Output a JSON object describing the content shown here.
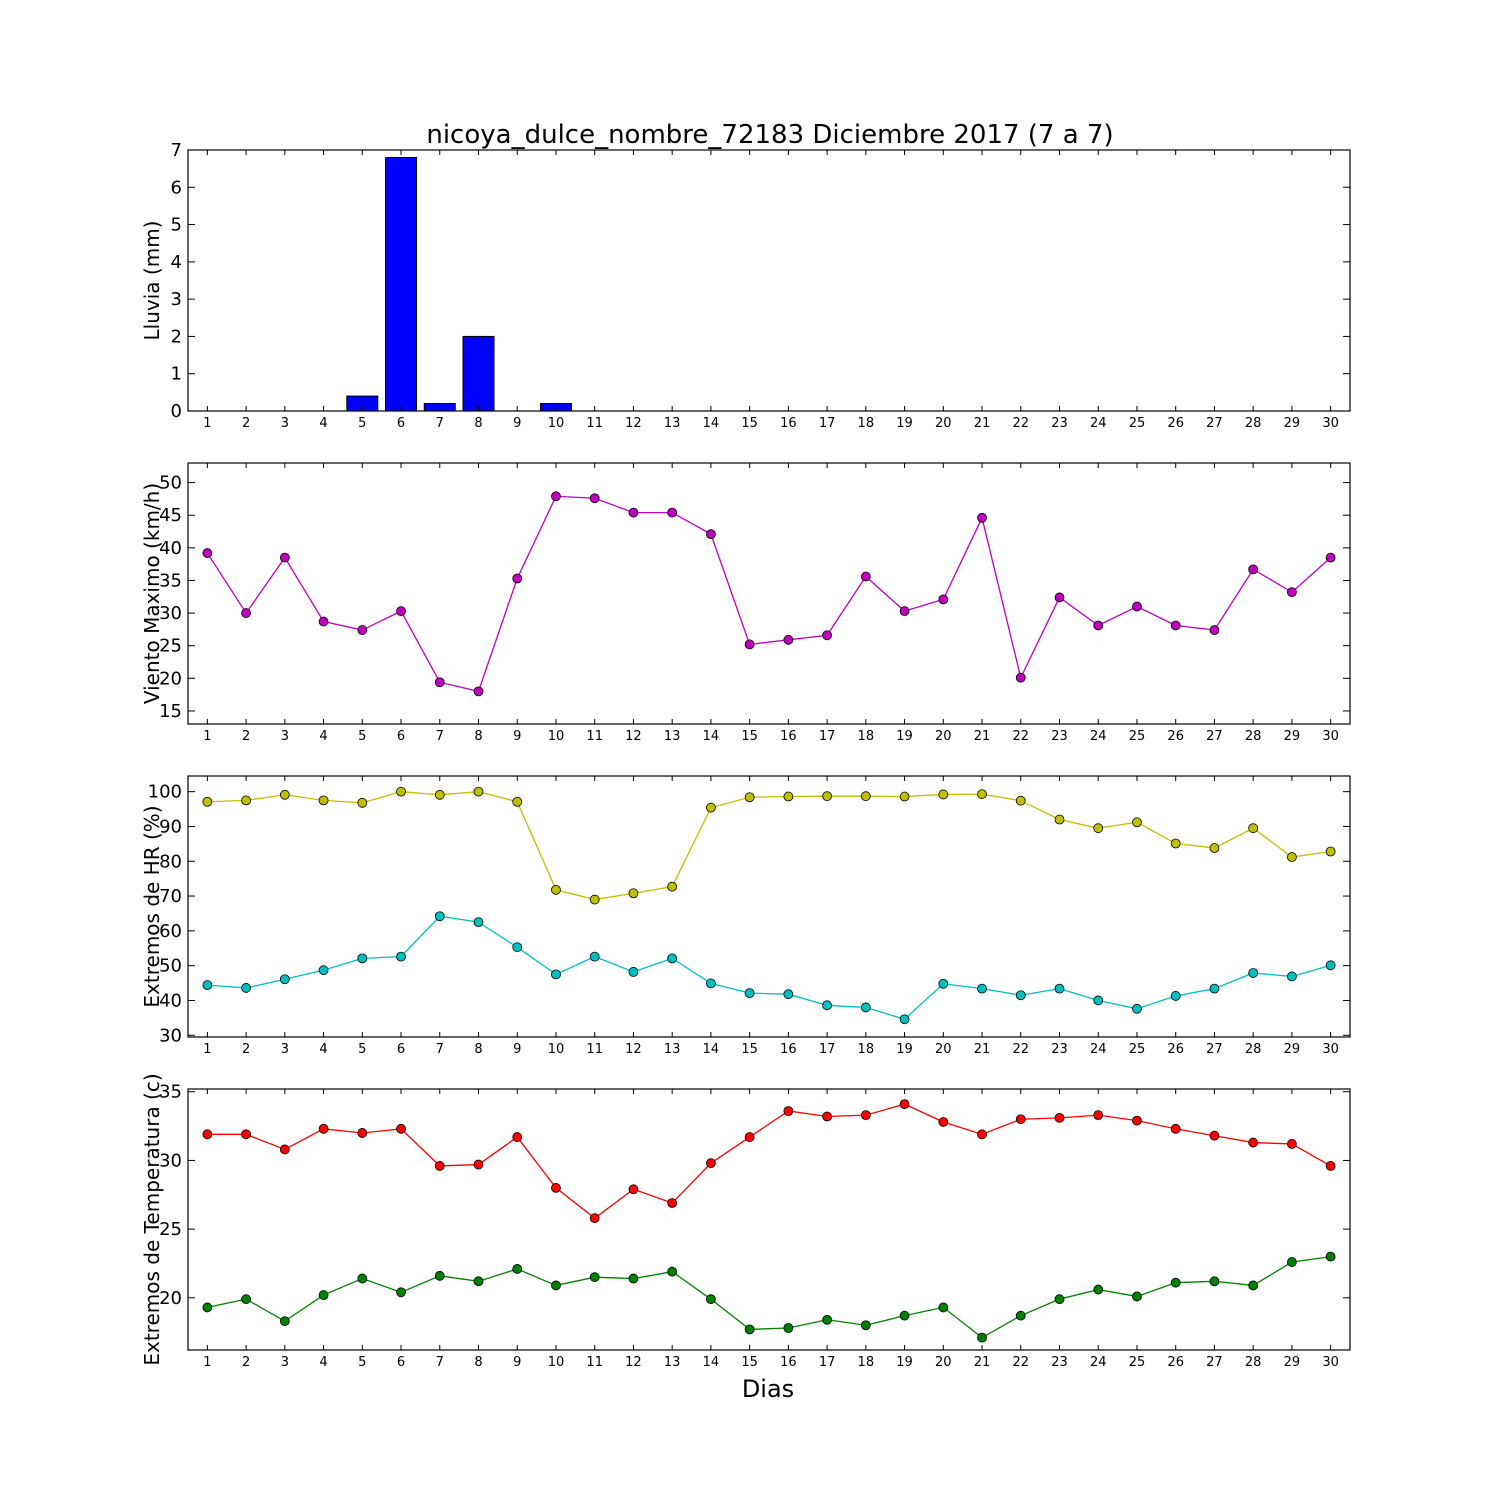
{
  "title": "nicoya_dulce_nombre_72183 Diciembre 2017  (7 a 7)",
  "xlabel": "Dias",
  "chart_data": [
    {
      "type": "bar",
      "ylabel": "Lluvia (mm)",
      "ylim": [
        0,
        7
      ],
      "yticks": [
        0,
        1,
        2,
        3,
        4,
        5,
        6,
        7
      ],
      "xlim": [
        0.5,
        30.5
      ],
      "categories": [
        1,
        2,
        3,
        4,
        5,
        6,
        7,
        8,
        9,
        10,
        11,
        12,
        13,
        14,
        15,
        16,
        17,
        18,
        19,
        20,
        21,
        22,
        23,
        24,
        25,
        26,
        27,
        28,
        29,
        30
      ],
      "series": [
        {
          "color": "#0000ff",
          "values": [
            0,
            0,
            0,
            0,
            0.4,
            6.8,
            0.2,
            2.0,
            0,
            0.2,
            0,
            0,
            0,
            0,
            0,
            0,
            0,
            0,
            0,
            0,
            0,
            0,
            0,
            0,
            0,
            0,
            0,
            0,
            0,
            0
          ]
        }
      ]
    },
    {
      "type": "line",
      "ylabel": "Viento Maximo (km/h)",
      "ylim": [
        13,
        53
      ],
      "yticks": [
        15,
        20,
        25,
        30,
        35,
        40,
        45,
        50
      ],
      "xlim": [
        0.5,
        30.5
      ],
      "x": [
        1,
        2,
        3,
        4,
        5,
        6,
        7,
        8,
        9,
        10,
        11,
        12,
        13,
        14,
        15,
        16,
        17,
        18,
        19,
        20,
        21,
        22,
        23,
        24,
        25,
        26,
        27,
        28,
        29,
        30
      ],
      "series": [
        {
          "color": "#bf00bf",
          "values": [
            39.2,
            30.0,
            38.5,
            28.7,
            27.4,
            30.3,
            19.4,
            18.0,
            35.3,
            47.9,
            47.6,
            45.4,
            45.4,
            42.1,
            25.2,
            25.9,
            26.6,
            35.6,
            30.3,
            32.1,
            44.6,
            20.1,
            32.4,
            28.1,
            31.0,
            28.1,
            27.4,
            36.7,
            33.2,
            38.5
          ]
        }
      ]
    },
    {
      "type": "line",
      "ylabel": "Extremos de HR (%)",
      "ylim": [
        29.5,
        104.5
      ],
      "yticks": [
        30,
        40,
        50,
        60,
        70,
        80,
        90,
        100
      ],
      "xlim": [
        0.5,
        30.5
      ],
      "x": [
        1,
        2,
        3,
        4,
        5,
        6,
        7,
        8,
        9,
        10,
        11,
        12,
        13,
        14,
        15,
        16,
        17,
        18,
        19,
        20,
        21,
        22,
        23,
        24,
        25,
        26,
        27,
        28,
        29,
        30
      ],
      "series": [
        {
          "color": "#bfbf00",
          "values": [
            97.1,
            97.5,
            99.1,
            97.5,
            96.8,
            100.0,
            99.1,
            100.0,
            97.1,
            71.8,
            69.0,
            70.8,
            72.7,
            95.4,
            98.4,
            98.6,
            98.7,
            98.7,
            98.6,
            99.2,
            99.3,
            97.4,
            92.0,
            89.5,
            91.2,
            85.1,
            83.8,
            89.5,
            81.2,
            82.8
          ]
        },
        {
          "color": "#00bfbf",
          "values": [
            44.4,
            43.6,
            46.1,
            48.7,
            52.1,
            52.6,
            64.2,
            62.5,
            55.3,
            47.5,
            52.6,
            48.2,
            52.1,
            44.9,
            42.1,
            41.8,
            38.6,
            38.0,
            34.6,
            44.8,
            43.4,
            41.5,
            43.4,
            40.0,
            37.6,
            41.3,
            43.4,
            47.9,
            46.9,
            50.1
          ]
        }
      ]
    },
    {
      "type": "line",
      "ylabel": "Extremos de Temperatura (c)",
      "ylim": [
        16.2,
        35.2
      ],
      "yticks": [
        20,
        25,
        30,
        35
      ],
      "xlim": [
        0.5,
        30.5
      ],
      "x": [
        1,
        2,
        3,
        4,
        5,
        6,
        7,
        8,
        9,
        10,
        11,
        12,
        13,
        14,
        15,
        16,
        17,
        18,
        19,
        20,
        21,
        22,
        23,
        24,
        25,
        26,
        27,
        28,
        29,
        30
      ],
      "series": [
        {
          "color": "#ff0000",
          "values": [
            31.9,
            31.9,
            30.8,
            32.3,
            32.0,
            32.3,
            29.6,
            29.7,
            31.7,
            28.0,
            25.8,
            27.9,
            26.9,
            29.8,
            31.7,
            33.6,
            33.2,
            33.3,
            34.1,
            32.8,
            31.9,
            33.0,
            33.1,
            33.3,
            32.9,
            32.3,
            31.8,
            31.3,
            31.2,
            29.6
          ]
        },
        {
          "color": "#008000",
          "values": [
            19.3,
            19.9,
            18.3,
            20.2,
            21.4,
            20.4,
            21.6,
            21.2,
            22.1,
            20.9,
            21.5,
            21.4,
            21.9,
            19.9,
            17.7,
            17.8,
            18.4,
            18.0,
            18.7,
            19.3,
            17.1,
            18.7,
            19.9,
            20.6,
            20.1,
            21.1,
            21.2,
            20.9,
            22.6,
            23.0
          ]
        }
      ]
    }
  ]
}
